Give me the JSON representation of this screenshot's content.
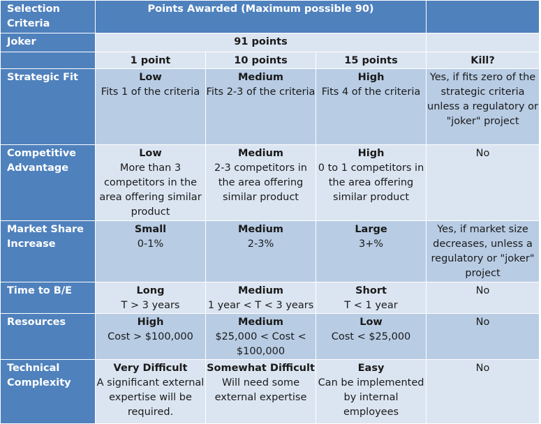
{
  "header": {
    "selection_criteria": "Selection Criteria",
    "points_awarded": "Points Awarded (Maximum possible 90)"
  },
  "joker": {
    "label": "Joker",
    "value": "91 points"
  },
  "columns": [
    "1 point",
    "10 points",
    "15 points",
    "Kill?"
  ],
  "rows": [
    {
      "label": "Strategic Fit",
      "cells": [
        {
          "level": "Low",
          "desc": "Fits 1 of the criteria"
        },
        {
          "level": "Medium",
          "desc": "Fits 2-3 of the criteria"
        },
        {
          "level": "High",
          "desc": "Fits  4 of the criteria"
        }
      ],
      "kill": "Yes, if fits zero of the strategic criteria unless a regulatory or \"joker\" project"
    },
    {
      "label": "Competitive Advantage",
      "cells": [
        {
          "level": "Low",
          "desc": "More than 3 competitors in the area offering similar product"
        },
        {
          "level": "Medium",
          "desc": "2-3 competitors in the area offering similar product"
        },
        {
          "level": "High",
          "desc": "0 to 1 competitors in the area offering similar product"
        }
      ],
      "kill": "No"
    },
    {
      "label": "Market Share Increase",
      "cells": [
        {
          "level": "Small",
          "desc": "0-1%"
        },
        {
          "level": "Medium",
          "desc": "2-3%"
        },
        {
          "level": "Large",
          "desc": "3+%"
        }
      ],
      "kill": "Yes, if market size decreases, unless a regulatory or \"joker\" project"
    },
    {
      "label": "Time to B/E",
      "cells": [
        {
          "level": "Long",
          "desc": "T > 3 years"
        },
        {
          "level": "Medium",
          "desc": "1 year < T < 3 years"
        },
        {
          "level": "Short",
          "desc": "T < 1 year"
        }
      ],
      "kill": "No"
    },
    {
      "label": "Resources",
      "cells": [
        {
          "level": "High",
          "desc": "Cost > $100,000"
        },
        {
          "level": "Medium",
          "desc": "$25,000 < Cost < $100,000"
        },
        {
          "level": "Low",
          "desc": "Cost < $25,000"
        }
      ],
      "kill": "No"
    },
    {
      "label": "Technical Complexity",
      "cells": [
        {
          "level": "Very Difficult",
          "desc": "A significant external expertise will be required."
        },
        {
          "level": "Somewhat Difficult",
          "desc": "Will need some external expertise"
        },
        {
          "level": "Easy",
          "desc": "Can be implemented by internal employees"
        }
      ],
      "kill": "No"
    }
  ]
}
